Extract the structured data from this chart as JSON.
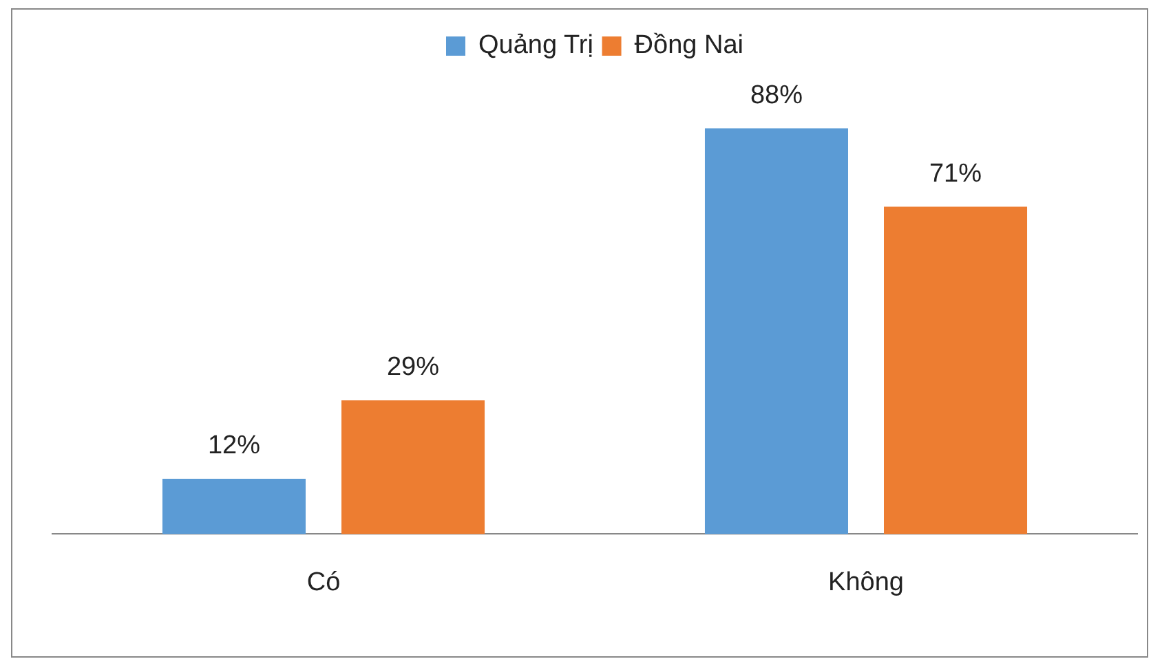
{
  "chart_data": {
    "type": "bar",
    "categories": [
      "Có",
      "Không"
    ],
    "series": [
      {
        "name": "Quảng Trị",
        "color": "#5b9bd5",
        "values": [
          12,
          88
        ],
        "value_labels": [
          "12%",
          "88%"
        ]
      },
      {
        "name": "Đồng Nai",
        "color": "#ed7d31",
        "values": [
          29,
          71
        ],
        "value_labels": [
          "29%",
          "71%"
        ]
      }
    ],
    "tick_labels": "x",
    "grid": false,
    "legend": "top"
  }
}
